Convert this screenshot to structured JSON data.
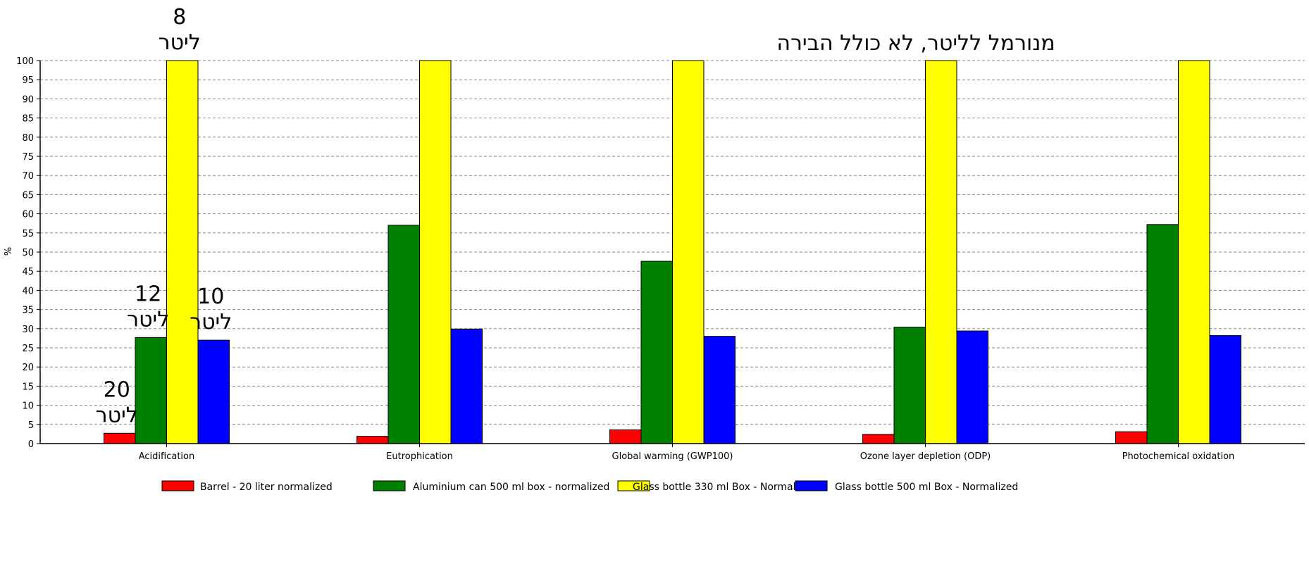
{
  "chart_data": {
    "type": "bar",
    "title": "מנורמל לליטר, לא כולל הבירה",
    "ylabel": "%",
    "xlabel": "",
    "ylim": [
      0,
      100
    ],
    "ytick_step": 5,
    "grid": true,
    "legend_position": "bottom",
    "categories": [
      "Acidification",
      "Eutrophication",
      "Global warming (GWP100)",
      "Ozone layer depletion (ODP)",
      "Photochemical oxidation"
    ],
    "series": [
      {
        "name": "Barrel - 20 liter normalized",
        "color": "#ff0000",
        "values": [
          2.7,
          1.9,
          3.6,
          2.4,
          3.1
        ]
      },
      {
        "name": "Aluminium can 500 ml box - normalized",
        "color": "#008000",
        "values": [
          27.7,
          57.0,
          47.6,
          30.4,
          57.2
        ]
      },
      {
        "name": "Glass bottle 330 ml Box - Normalized",
        "color": "#ffff00",
        "values": [
          100,
          100,
          100,
          100,
          100
        ]
      },
      {
        "name": "Glass bottle 500 ml Box - Normalized",
        "color": "#0000ff",
        "values": [
          27.0,
          29.9,
          28.0,
          29.4,
          28.2
        ]
      }
    ],
    "annotations": [
      {
        "series_index": 0,
        "category_index": 0,
        "lines": [
          "20",
          "ליטר"
        ]
      },
      {
        "series_index": 1,
        "category_index": 0,
        "lines": [
          "12",
          "ליטר"
        ]
      },
      {
        "series_index": 2,
        "category_index": 0,
        "lines": [
          "8",
          "ליטר"
        ]
      },
      {
        "series_index": 3,
        "category_index": 0,
        "lines": [
          "10",
          "ליטר"
        ]
      }
    ]
  }
}
